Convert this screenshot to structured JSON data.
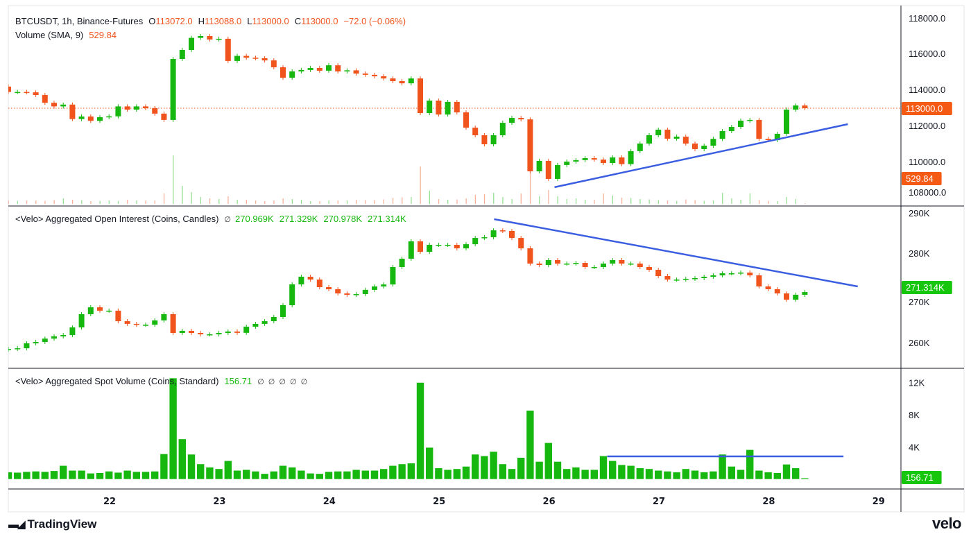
{
  "header": {
    "symbol": "BTCUSDT, 1h, Binance-Futures",
    "ohlc": [
      {
        "key": "O",
        "value": "113072.0"
      },
      {
        "key": "H",
        "value": "113088.0"
      },
      {
        "key": "L",
        "value": "113000.0"
      },
      {
        "key": "C",
        "value": "113000.0"
      }
    ],
    "change": "−72.0 (−0.06%)"
  },
  "volume_legend": {
    "label": "Volume (SMA, 9)",
    "value": "529.84"
  },
  "oi_legend": {
    "label": "<Velo> Aggregated Open Interest (Coins, Candles)",
    "icon": "∅",
    "values": [
      "270.969K",
      "271.329K",
      "270.978K",
      "271.314K"
    ]
  },
  "spot_legend": {
    "label": "<Velo> Aggregated Spot Volume (Coins, Standard)",
    "value": "156.71",
    "icons": [
      "∅",
      "∅",
      "∅",
      "∅",
      "∅"
    ]
  },
  "footer": {
    "left_logo": "TradingView",
    "right_logo": "velo"
  },
  "colors": {
    "up": "#16b80f",
    "down": "#f0531c",
    "trendline": "#3b5ee0",
    "last_price_badge": "#f55a14",
    "green_badge": "#16c60c"
  },
  "chart_data": [
    {
      "type": "candlestick",
      "pane": "price",
      "title": "BTCUSDT, 1h, Binance-Futures",
      "x_ticks": [
        "22",
        "23",
        "24",
        "25",
        "26",
        "27",
        "28",
        "29"
      ],
      "y_ticks": [
        "118000.0",
        "116000.0",
        "114000.0",
        "112000.0",
        "110000.0",
        "108000.0"
      ],
      "ylim": [
        108000,
        118000
      ],
      "first_open": 114200,
      "closes": [
        113900,
        113900,
        113880,
        113730,
        113300,
        113100,
        113200,
        112400,
        112540,
        112300,
        112500,
        112550,
        113100,
        112920,
        113100,
        113000,
        112700,
        112350,
        115730,
        116230,
        116900,
        117000,
        116810,
        116850,
        115620,
        115900,
        115800,
        115770,
        115650,
        115270,
        114690,
        115040,
        115120,
        115230,
        115080,
        115380,
        115040,
        115100,
        114920,
        114850,
        114770,
        114650,
        114500,
        114380,
        114650,
        112730,
        113420,
        112650,
        113350,
        112770,
        111920,
        111500,
        111000,
        111500,
        112190,
        112460,
        112380,
        109500,
        110080,
        109080,
        109850,
        110040,
        110120,
        110230,
        110150,
        109960,
        110270,
        109900,
        110620,
        111040,
        111500,
        111810,
        111310,
        111420,
        111040,
        110730,
        110920,
        111300,
        111730,
        111960,
        112310,
        112350,
        111300,
        111230,
        111580,
        112920,
        113150,
        113000
      ],
      "volume": [
        500,
        450,
        500,
        500,
        450,
        550,
        800,
        600,
        550,
        400,
        450,
        500,
        450,
        600,
        500,
        500,
        500,
        1500,
        7000,
        2600,
        1700,
        1000,
        800,
        700,
        1100,
        600,
        600,
        500,
        400,
        500,
        800,
        700,
        600,
        400,
        400,
        500,
        500,
        500,
        600,
        550,
        550,
        650,
        850,
        950,
        1000,
        5400,
        1900,
        700,
        600,
        650,
        800,
        1300,
        1400,
        1600,
        1000,
        700,
        1500,
        4400,
        1100,
        2000,
        1100,
        700,
        800,
        600,
        600,
        1500,
        1200,
        900,
        850,
        700,
        650,
        550,
        500,
        450,
        650,
        550,
        450,
        500,
        1600,
        800,
        600,
        1500,
        550,
        450,
        400,
        1000,
        700,
        80
      ],
      "last_price_label": "113000.0",
      "volume_sma_label": "529.84",
      "trendline": {
        "from": {
          "day": 26.05,
          "value": 108620
        },
        "to": {
          "day": 28.72,
          "value": 112116
        }
      }
    },
    {
      "type": "candlestick",
      "pane": "open_interest",
      "title": "<Velo> Aggregated Open Interest (Coins, Candles)",
      "y_ticks": [
        "290K",
        "280K",
        "270K",
        "260K"
      ],
      "ylim": [
        256000,
        290000
      ],
      "first_open": 258400,
      "closes": [
        258600,
        258750,
        259850,
        260150,
        260900,
        261400,
        261700,
        263400,
        266360,
        267900,
        267150,
        267150,
        264800,
        264200,
        264000,
        264000,
        264960,
        266360,
        262170,
        262640,
        262170,
        261860,
        261860,
        262170,
        262480,
        262200,
        263570,
        264200,
        264800,
        265740,
        268370,
        273020,
        274730,
        274100,
        272400,
        271940,
        271000,
        270700,
        270850,
        271800,
        272560,
        273000,
        276900,
        278760,
        282640,
        280300,
        281860,
        281860,
        281860,
        281080,
        282000,
        283400,
        283560,
        285100,
        284960,
        283400,
        281080,
        277670,
        277360,
        278450,
        277670,
        277670,
        277830,
        276900,
        276900,
        277670,
        278450,
        277670,
        277670,
        276900,
        276280,
        274880,
        274100,
        274100,
        274260,
        274420,
        274730,
        275040,
        275500,
        275500,
        275660,
        275040,
        272560,
        271940,
        271000,
        269600,
        270700,
        271314
      ],
      "last_value_label": "271.314K",
      "trendline": {
        "from": {
          "day": 25.5,
          "value": 287600
        },
        "to": {
          "day": 28.81,
          "value": 272560
        }
      }
    },
    {
      "type": "bar",
      "pane": "spot_volume",
      "title": "<Velo> Aggregated Spot Volume (Coins, Standard)",
      "y_ticks": [
        "12K",
        "8K",
        "4K"
      ],
      "ylim": [
        0,
        13000
      ],
      "values": [
        900,
        850,
        950,
        1000,
        950,
        1050,
        1700,
        1100,
        1100,
        750,
        800,
        1000,
        850,
        1100,
        950,
        950,
        1000,
        3150,
        12550,
        5000,
        3100,
        1900,
        1500,
        1300,
        2300,
        1100,
        1200,
        1000,
        700,
        1000,
        1700,
        1500,
        1100,
        750,
        700,
        950,
        1000,
        1000,
        1200,
        1100,
        1100,
        1300,
        1700,
        1900,
        2000,
        12000,
        3950,
        1400,
        1200,
        1300,
        1600,
        3100,
        2900,
        3440,
        1900,
        1300,
        2700,
        8540,
        2200,
        4530,
        2200,
        1300,
        1500,
        1200,
        1200,
        2900,
        2300,
        1800,
        1700,
        1400,
        1300,
        1100,
        1000,
        900,
        1300,
        1100,
        900,
        1000,
        3100,
        1600,
        1200,
        3670,
        1100,
        900,
        800,
        1860,
        1400,
        157
      ],
      "last_value_label": "156.71",
      "hline": {
        "from_day": 26.53,
        "to_day": 28.68,
        "value": 2840
      }
    }
  ]
}
